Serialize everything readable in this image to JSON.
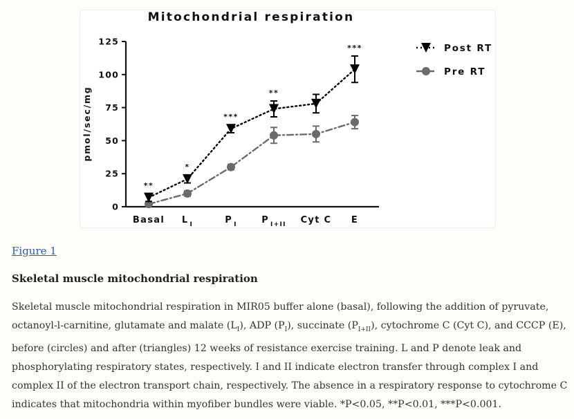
{
  "figure_link": "Figure 1",
  "figure_title": "Skeletal muscle mitochondrial respiration",
  "caption": [
    {
      "t": "Skeletal muscle mitochondrial respiration in MIR05 buffer alone (basal), following the addition of pyruvate, octanoyl-l-carnitine, glutamate and malate (L"
    },
    {
      "t": "I",
      "sub": true
    },
    {
      "t": "), ADP (P"
    },
    {
      "t": "I",
      "sub": true
    },
    {
      "t": "), succinate (P"
    },
    {
      "t": "I+II",
      "sub": true
    },
    {
      "t": "), cytochrome C (Cyt C), and CCCP (E), before (circles) and after (triangles) 12 weeks of resistance exercise training. L and P denote leak and phosphorylating respiratory states, respectively. I and II indicate electron transfer through complex I and complex II of the electron transport chain, respectively. The absence in a respiratory response to cytochrome C indicates that mitochondria within myofiber bundles were viable. *P<0.05, **P<0.01, ***P<0.001."
    }
  ],
  "chart_data": {
    "type": "line",
    "title": "Mitochondrial respiration",
    "ylabel": "pmol/sec/mg",
    "xlabel": "",
    "ylim": [
      0,
      125
    ],
    "yticks": [
      0,
      25,
      50,
      75,
      100,
      125
    ],
    "categories": [
      {
        "main": "Basal",
        "sub": ""
      },
      {
        "main": "L",
        "sub": "I"
      },
      {
        "main": "P",
        "sub": "I"
      },
      {
        "main": "P",
        "sub": "I+II"
      },
      {
        "main": "Cyt C",
        "sub": ""
      },
      {
        "main": "E",
        "sub": ""
      }
    ],
    "series": [
      {
        "name": "Post RT",
        "marker": "triangle-down",
        "line": "dotted",
        "color": "#000000",
        "values": [
          7,
          21,
          59,
          74,
          78,
          104
        ],
        "errors": [
          3,
          3,
          3,
          6,
          7,
          10
        ]
      },
      {
        "name": "Pre RT",
        "marker": "circle",
        "line": "dash-dot",
        "color": "#6b6b6b",
        "values": [
          2,
          10,
          30,
          54,
          55,
          64
        ],
        "errors": [
          1,
          2,
          2,
          6,
          6,
          5
        ]
      }
    ],
    "significance": [
      "**",
      "*",
      "***",
      "**",
      "",
      "***"
    ],
    "legend_position": "top-right",
    "grid": false
  }
}
